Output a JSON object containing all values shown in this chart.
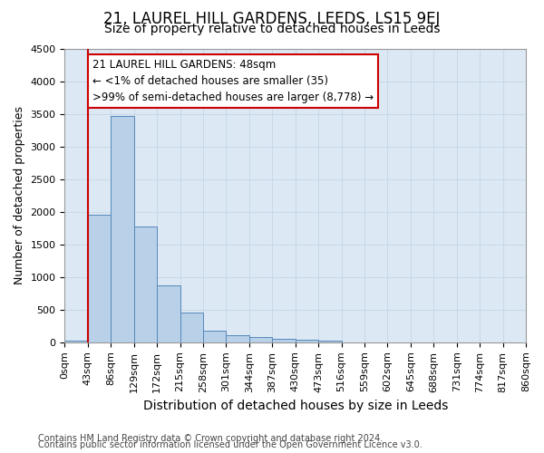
{
  "title": "21, LAUREL HILL GARDENS, LEEDS, LS15 9EJ",
  "subtitle": "Size of property relative to detached houses in Leeds",
  "xlabel": "Distribution of detached houses by size in Leeds",
  "ylabel": "Number of detached properties",
  "bar_values": [
    30,
    1950,
    3470,
    1780,
    870,
    450,
    175,
    105,
    80,
    55,
    40,
    30,
    0,
    0,
    0,
    0,
    0,
    0,
    0,
    0
  ],
  "bin_labels": [
    "0sqm",
    "43sqm",
    "86sqm",
    "129sqm",
    "172sqm",
    "215sqm",
    "258sqm",
    "301sqm",
    "344sqm",
    "387sqm",
    "430sqm",
    "473sqm",
    "516sqm",
    "559sqm",
    "602sqm",
    "645sqm",
    "688sqm",
    "731sqm",
    "774sqm",
    "817sqm",
    "860sqm"
  ],
  "bar_color": "#b8d0e8",
  "bar_edge_color": "#5588bb",
  "grid_color": "#c8d8e8",
  "background_color": "#dce8f4",
  "annotation_text": "21 LAUREL HILL GARDENS: 48sqm\n← <1% of detached houses are smaller (35)\n>99% of semi-detached houses are larger (8,778) →",
  "annotation_box_color": "#ffffff",
  "annotation_box_edge_color": "#cc0000",
  "red_line_color": "#cc0000",
  "ylim_max": 4500,
  "yticks": [
    0,
    500,
    1000,
    1500,
    2000,
    2500,
    3000,
    3500,
    4000,
    4500
  ],
  "footnote1": "Contains HM Land Registry data © Crown copyright and database right 2024.",
  "footnote2": "Contains public sector information licensed under the Open Government Licence v3.0.",
  "title_fontsize": 12,
  "subtitle_fontsize": 10,
  "xlabel_fontsize": 10,
  "ylabel_fontsize": 9,
  "tick_fontsize": 8,
  "annotation_fontsize": 8.5,
  "footnote_fontsize": 7
}
